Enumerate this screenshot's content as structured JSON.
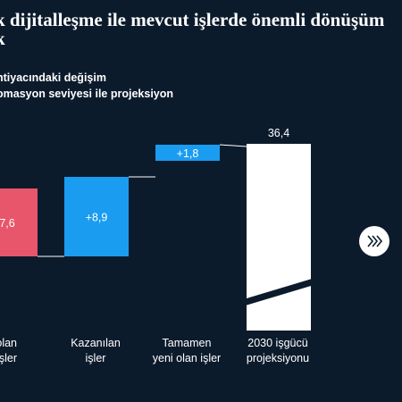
{
  "title_lines": [
    "k dijitalleşme ile mevcut işlerde önemli dönüşüm",
    "k"
  ],
  "subtitle_lines": [
    "htiyacındaki değişim",
    "omasyon seviyesi ile projeksiyon"
  ],
  "next_button": {
    "icon": "chevrons-right-icon"
  },
  "colors": {
    "background": "#0c1b2c",
    "lost": "#e8566b",
    "gain": "#1a9cf0",
    "total": "#ffffff"
  },
  "chart_data": {
    "type": "bar",
    "subtype": "waterfall",
    "categories": [
      "...rbolan işler",
      "Kazanılan işler",
      "Tamamen yeni olan işler",
      "2030 işgücü projeksiyonu"
    ],
    "label_lines": [
      [
        "rbolan",
        "işler"
      ],
      [
        "Kazanılan",
        "işler"
      ],
      [
        "Tamamen",
        "yeni olan işler"
      ],
      [
        "2030 işgücü",
        "projeksiyonu"
      ]
    ],
    "values": [
      -7.6,
      8.9,
      1.8,
      36.4
    ],
    "value_labels": [
      "7,6",
      "+8,9",
      "+1,8",
      "36,4"
    ],
    "bar_kind": [
      "decrease",
      "increase",
      "increase",
      "total"
    ],
    "axis_break": true,
    "grid": false
  }
}
